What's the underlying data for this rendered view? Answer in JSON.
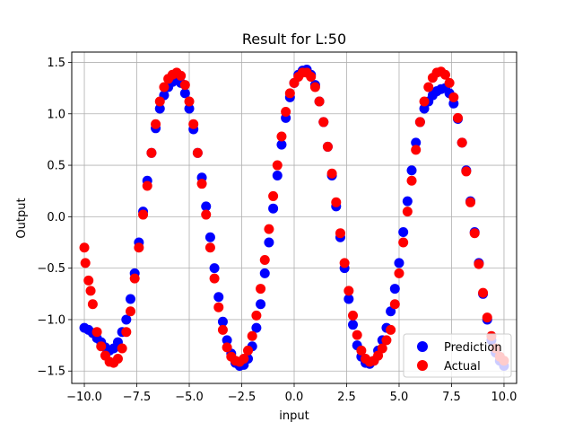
{
  "chart_data": {
    "type": "scatter",
    "title": "Result for L:50",
    "xlabel": "input",
    "ylabel": "Output",
    "xlim": [
      -10.6,
      10.6
    ],
    "ylim": [
      -1.62,
      1.6
    ],
    "xticks": [
      -10.0,
      -7.5,
      -5.0,
      -2.5,
      0.0,
      2.5,
      5.0,
      7.5,
      10.0
    ],
    "xtick_labels": [
      "−10.0",
      "−7.5",
      "−5.0",
      "−2.5",
      "0.0",
      "2.5",
      "5.0",
      "7.5",
      "10.0"
    ],
    "yticks": [
      -1.5,
      -1.0,
      -0.5,
      0.0,
      0.5,
      1.0,
      1.5
    ],
    "ytick_labels": [
      "−1.5",
      "−1.0",
      "−0.5",
      "0.0",
      "0.5",
      "1.0",
      "1.5"
    ],
    "grid": true,
    "legend_position": "lower-right",
    "series": [
      {
        "name": "Prediction",
        "color": "#0000ff",
        "points": [
          [
            -10.0,
            -1.08
          ],
          [
            -9.8,
            -1.1
          ],
          [
            -9.6,
            -1.13
          ],
          [
            -9.4,
            -1.18
          ],
          [
            -9.2,
            -1.22
          ],
          [
            -9.0,
            -1.27
          ],
          [
            -8.8,
            -1.3
          ],
          [
            -8.6,
            -1.28
          ],
          [
            -8.4,
            -1.22
          ],
          [
            -8.2,
            -1.12
          ],
          [
            -8.0,
            -1.0
          ],
          [
            -7.8,
            -0.8
          ],
          [
            -7.6,
            -0.55
          ],
          [
            -7.4,
            -0.25
          ],
          [
            -7.2,
            0.05
          ],
          [
            -7.0,
            0.35
          ],
          [
            -6.8,
            0.62
          ],
          [
            -6.6,
            0.86
          ],
          [
            -6.4,
            1.05
          ],
          [
            -6.2,
            1.18
          ],
          [
            -6.0,
            1.26
          ],
          [
            -5.8,
            1.31
          ],
          [
            -5.6,
            1.33
          ],
          [
            -5.4,
            1.3
          ],
          [
            -5.2,
            1.2
          ],
          [
            -5.0,
            1.05
          ],
          [
            -4.8,
            0.85
          ],
          [
            -4.6,
            0.62
          ],
          [
            -4.4,
            0.38
          ],
          [
            -4.2,
            0.1
          ],
          [
            -4.0,
            -0.2
          ],
          [
            -3.8,
            -0.5
          ],
          [
            -3.6,
            -0.78
          ],
          [
            -3.4,
            -1.02
          ],
          [
            -3.2,
            -1.2
          ],
          [
            -3.0,
            -1.33
          ],
          [
            -2.8,
            -1.42
          ],
          [
            -2.6,
            -1.45
          ],
          [
            -2.4,
            -1.44
          ],
          [
            -2.2,
            -1.38
          ],
          [
            -2.0,
            -1.26
          ],
          [
            -1.8,
            -1.08
          ],
          [
            -1.6,
            -0.85
          ],
          [
            -1.4,
            -0.55
          ],
          [
            -1.2,
            -0.25
          ],
          [
            -1.0,
            0.08
          ],
          [
            -0.8,
            0.4
          ],
          [
            -0.6,
            0.7
          ],
          [
            -0.4,
            0.96
          ],
          [
            -0.2,
            1.16
          ],
          [
            0.0,
            1.3
          ],
          [
            0.2,
            1.38
          ],
          [
            0.4,
            1.42
          ],
          [
            0.6,
            1.43
          ],
          [
            0.8,
            1.38
          ],
          [
            1.0,
            1.28
          ],
          [
            1.2,
            1.12
          ],
          [
            1.4,
            0.92
          ],
          [
            1.6,
            0.68
          ],
          [
            1.8,
            0.4
          ],
          [
            2.0,
            0.1
          ],
          [
            2.2,
            -0.2
          ],
          [
            2.4,
            -0.5
          ],
          [
            2.6,
            -0.8
          ],
          [
            2.8,
            -1.05
          ],
          [
            3.0,
            -1.25
          ],
          [
            3.2,
            -1.36
          ],
          [
            3.4,
            -1.42
          ],
          [
            3.6,
            -1.43
          ],
          [
            3.8,
            -1.4
          ],
          [
            4.0,
            -1.3
          ],
          [
            4.2,
            -1.2
          ],
          [
            4.4,
            -1.08
          ],
          [
            4.6,
            -0.92
          ],
          [
            4.8,
            -0.7
          ],
          [
            5.0,
            -0.45
          ],
          [
            5.2,
            -0.15
          ],
          [
            5.4,
            0.15
          ],
          [
            5.6,
            0.45
          ],
          [
            5.8,
            0.72
          ],
          [
            6.0,
            0.92
          ],
          [
            6.2,
            1.05
          ],
          [
            6.4,
            1.12
          ],
          [
            6.6,
            1.18
          ],
          [
            6.8,
            1.22
          ],
          [
            7.0,
            1.24
          ],
          [
            7.2,
            1.25
          ],
          [
            7.4,
            1.2
          ],
          [
            7.6,
            1.1
          ],
          [
            7.8,
            0.95
          ],
          [
            8.0,
            0.72
          ],
          [
            8.2,
            0.45
          ],
          [
            8.4,
            0.15
          ],
          [
            8.6,
            -0.15
          ],
          [
            8.8,
            -0.45
          ],
          [
            9.0,
            -0.75
          ],
          [
            9.2,
            -1.0
          ],
          [
            9.4,
            -1.2
          ],
          [
            9.6,
            -1.32
          ],
          [
            9.8,
            -1.4
          ],
          [
            10.0,
            -1.45
          ]
        ]
      },
      {
        "name": "Actual",
        "color": "#ff0000",
        "points": [
          [
            -10.0,
            -0.3
          ],
          [
            -9.95,
            -0.45
          ],
          [
            -9.8,
            -0.62
          ],
          [
            -9.7,
            -0.72
          ],
          [
            -9.6,
            -0.85
          ],
          [
            -9.4,
            -1.12
          ],
          [
            -9.2,
            -1.26
          ],
          [
            -9.0,
            -1.35
          ],
          [
            -8.8,
            -1.41
          ],
          [
            -8.6,
            -1.42
          ],
          [
            -8.4,
            -1.38
          ],
          [
            -8.2,
            -1.28
          ],
          [
            -8.0,
            -1.12
          ],
          [
            -7.8,
            -0.92
          ],
          [
            -7.6,
            -0.6
          ],
          [
            -7.4,
            -0.3
          ],
          [
            -7.2,
            0.02
          ],
          [
            -7.0,
            0.3
          ],
          [
            -6.8,
            0.62
          ],
          [
            -6.6,
            0.9
          ],
          [
            -6.4,
            1.12
          ],
          [
            -6.2,
            1.26
          ],
          [
            -6.0,
            1.34
          ],
          [
            -5.8,
            1.38
          ],
          [
            -5.6,
            1.4
          ],
          [
            -5.4,
            1.37
          ],
          [
            -5.2,
            1.28
          ],
          [
            -5.0,
            1.12
          ],
          [
            -4.8,
            0.9
          ],
          [
            -4.6,
            0.62
          ],
          [
            -4.4,
            0.32
          ],
          [
            -4.2,
            0.02
          ],
          [
            -4.0,
            -0.3
          ],
          [
            -3.8,
            -0.6
          ],
          [
            -3.6,
            -0.88
          ],
          [
            -3.4,
            -1.1
          ],
          [
            -3.2,
            -1.27
          ],
          [
            -3.0,
            -1.36
          ],
          [
            -2.8,
            -1.4
          ],
          [
            -2.6,
            -1.41
          ],
          [
            -2.4,
            -1.38
          ],
          [
            -2.2,
            -1.3
          ],
          [
            -2.0,
            -1.16
          ],
          [
            -1.8,
            -0.96
          ],
          [
            -1.6,
            -0.7
          ],
          [
            -1.4,
            -0.42
          ],
          [
            -1.2,
            -0.12
          ],
          [
            -1.0,
            0.2
          ],
          [
            -0.8,
            0.5
          ],
          [
            -0.6,
            0.78
          ],
          [
            -0.4,
            1.02
          ],
          [
            -0.2,
            1.2
          ],
          [
            0.0,
            1.3
          ],
          [
            0.2,
            1.36
          ],
          [
            0.4,
            1.4
          ],
          [
            0.6,
            1.4
          ],
          [
            0.8,
            1.36
          ],
          [
            1.0,
            1.26
          ],
          [
            1.2,
            1.12
          ],
          [
            1.4,
            0.92
          ],
          [
            1.6,
            0.68
          ],
          [
            1.8,
            0.42
          ],
          [
            2.0,
            0.14
          ],
          [
            2.2,
            -0.16
          ],
          [
            2.4,
            -0.45
          ],
          [
            2.6,
            -0.72
          ],
          [
            2.8,
            -0.96
          ],
          [
            3.0,
            -1.15
          ],
          [
            3.2,
            -1.3
          ],
          [
            3.4,
            -1.38
          ],
          [
            3.6,
            -1.41
          ],
          [
            3.8,
            -1.4
          ],
          [
            4.0,
            -1.35
          ],
          [
            4.2,
            -1.28
          ],
          [
            4.4,
            -1.2
          ],
          [
            4.6,
            -1.1
          ],
          [
            4.8,
            -0.85
          ],
          [
            5.0,
            -0.55
          ],
          [
            5.2,
            -0.25
          ],
          [
            5.4,
            0.05
          ],
          [
            5.6,
            0.35
          ],
          [
            5.8,
            0.65
          ],
          [
            6.0,
            0.92
          ],
          [
            6.2,
            1.12
          ],
          [
            6.4,
            1.26
          ],
          [
            6.6,
            1.35
          ],
          [
            6.8,
            1.4
          ],
          [
            7.0,
            1.41
          ],
          [
            7.2,
            1.38
          ],
          [
            7.4,
            1.3
          ],
          [
            7.6,
            1.16
          ],
          [
            7.8,
            0.96
          ],
          [
            8.0,
            0.72
          ],
          [
            8.2,
            0.44
          ],
          [
            8.4,
            0.14
          ],
          [
            8.6,
            -0.16
          ],
          [
            8.8,
            -0.46
          ],
          [
            9.0,
            -0.74
          ],
          [
            9.2,
            -0.98
          ],
          [
            9.4,
            -1.16
          ],
          [
            9.6,
            -1.28
          ],
          [
            9.8,
            -1.36
          ],
          [
            10.0,
            -1.4
          ]
        ]
      }
    ]
  }
}
